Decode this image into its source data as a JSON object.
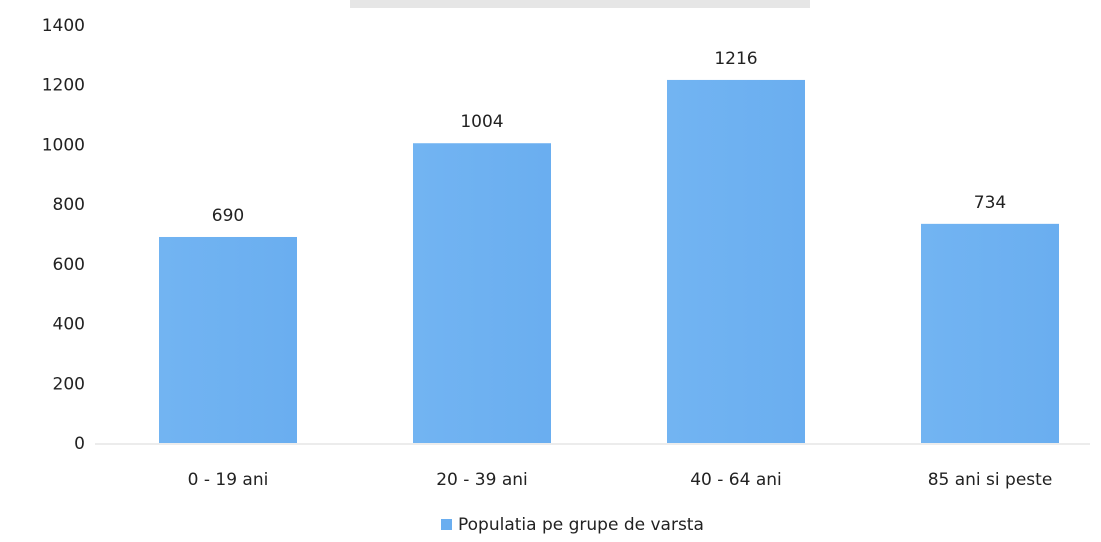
{
  "chart_data": {
    "type": "bar",
    "categories": [
      "0 - 19 ani",
      "20 - 39 ani",
      "40 - 64 ani",
      "85 ani si peste"
    ],
    "series": [
      {
        "name": "Populatia pe grupe de varsta",
        "values": [
          690,
          1004,
          1216,
          734
        ],
        "color": "#6AAEF0"
      }
    ],
    "ylim": [
      0,
      1400
    ],
    "yticks": [
      0,
      200,
      400,
      600,
      800,
      1000,
      1200,
      1400
    ],
    "ytick_labels": [
      "0",
      "200",
      "400",
      "600",
      "800",
      "1000",
      "1200",
      "1400"
    ],
    "data_labels": [
      "690",
      "1004",
      "1216",
      "734"
    ],
    "legend": {
      "position": "bottom",
      "entries": [
        "Populatia pe grupe de varsta"
      ]
    },
    "grid": false,
    "title": "",
    "xlabel": "",
    "ylabel": ""
  }
}
